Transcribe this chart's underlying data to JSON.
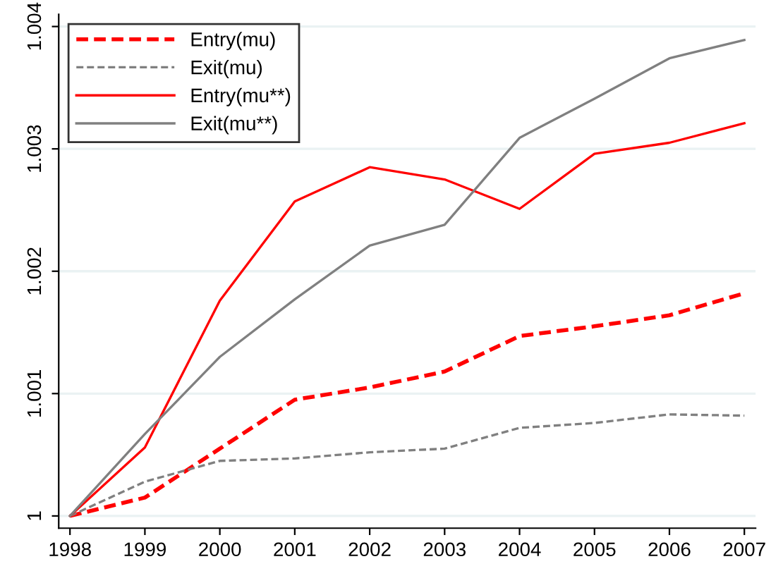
{
  "chart_data": {
    "type": "line",
    "x": [
      1998,
      1999,
      2000,
      2001,
      2002,
      2003,
      2004,
      2005,
      2006,
      2007
    ],
    "series": [
      {
        "name": "Entry(mu)",
        "color": "#ff0000",
        "line_style": "dashed",
        "values": [
          1.0,
          1.00015,
          1.00055,
          1.00095,
          1.00105,
          1.00118,
          1.00147,
          1.00155,
          1.00164,
          1.00182
        ]
      },
      {
        "name": "Exit(mu)",
        "color": "#808080",
        "line_style": "dashed",
        "values": [
          1.0,
          1.00028,
          1.00045,
          1.00047,
          1.00052,
          1.00055,
          1.00072,
          1.00076,
          1.00083,
          1.00082
        ]
      },
      {
        "name": "Entry(mu**)",
        "color": "#ff0000",
        "line_style": "solid",
        "values": [
          1.0,
          1.00056,
          1.00176,
          1.00257,
          1.00285,
          1.00275,
          1.00251,
          1.00296,
          1.00305,
          1.00321
        ]
      },
      {
        "name": "Exit(mu**)",
        "color": "#808080",
        "line_style": "solid",
        "values": [
          1.0,
          1.00067,
          1.0013,
          1.00177,
          1.00221,
          1.00238,
          1.00309,
          1.00341,
          1.00374,
          1.00389
        ]
      }
    ],
    "xlim": [
      1997.85,
      2007.15
    ],
    "ylim": [
      0.9999,
      1.0041
    ],
    "xticks": [
      1998,
      1999,
      2000,
      2001,
      2002,
      2003,
      2004,
      2005,
      2006,
      2007
    ],
    "yticks": [
      {
        "value": 1,
        "label": "1"
      },
      1.001,
      1.002,
      1.003,
      1.004
    ],
    "grid": "y",
    "legend": "top left"
  }
}
